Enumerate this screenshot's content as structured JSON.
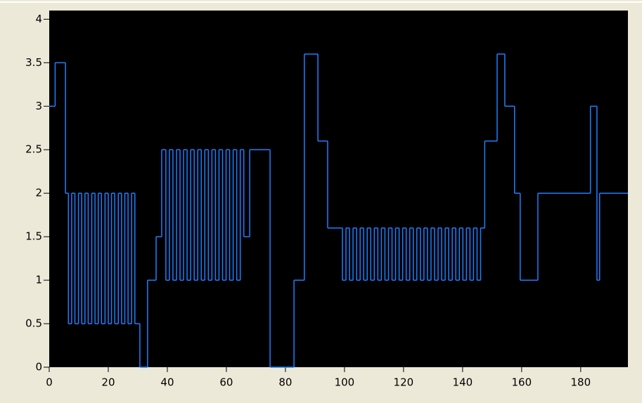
{
  "chart_data": {
    "type": "line",
    "step": "post",
    "background": "#000000",
    "x": [
      0,
      2,
      5.5,
      6.5,
      7.6,
      8.7,
      9.9,
      11,
      12.1,
      13.2,
      14.4,
      15.5,
      16.6,
      17.7,
      18.9,
      20,
      21.1,
      22.2,
      23.4,
      24.5,
      25.6,
      26.7,
      27.9,
      29,
      30.7,
      33.3,
      36.2,
      38.1,
      39.5,
      40.7,
      41.9,
      43.1,
      44.3,
      45.5,
      46.7,
      47.9,
      49.1,
      50.3,
      51.5,
      52.7,
      53.9,
      55.1,
      56.3,
      57.5,
      58.7,
      59.9,
      61.1,
      62.3,
      63.5,
      64.7,
      65.9,
      67.9,
      74.8,
      82.9,
      86.4,
      91,
      94.3,
      99.3,
      100.5,
      101.7,
      102.9,
      104.1,
      105.3,
      106.5,
      107.7,
      108.9,
      110.1,
      111.3,
      112.5,
      113.7,
      114.9,
      116.1,
      117.3,
      118.5,
      119.7,
      120.9,
      122.1,
      123.3,
      124.5,
      125.7,
      126.9,
      128.1,
      129.3,
      130.5,
      131.7,
      132.9,
      134.1,
      135.3,
      136.5,
      137.7,
      138.9,
      140.1,
      141.3,
      142.5,
      143.7,
      144.9,
      146.1,
      147.5,
      151.7,
      154.3,
      157.6,
      159.5,
      165.5,
      183.3,
      185.5,
      186.4,
      196
    ],
    "series": [
      {
        "color": "#1e7fff",
        "values": [
          3,
          3.5,
          2,
          0.5,
          2,
          0.5,
          2,
          0.5,
          2,
          0.5,
          2,
          0.5,
          2,
          0.5,
          2,
          0.5,
          2,
          0.5,
          2,
          0.5,
          2,
          0.5,
          2,
          0.5,
          0,
          1,
          1.5,
          2.5,
          1,
          2.5,
          1,
          2.5,
          1,
          2.5,
          1,
          2.5,
          1,
          2.5,
          1,
          2.5,
          1,
          2.5,
          1,
          2.5,
          1,
          2.5,
          1,
          2.5,
          1,
          2.5,
          1.5,
          2.5,
          0,
          1,
          3.6,
          2.6,
          1.6,
          1,
          1.6,
          1,
          1.6,
          1,
          1.6,
          1,
          1.6,
          1,
          1.6,
          1,
          1.6,
          1,
          1.6,
          1,
          1.6,
          1,
          1.6,
          1,
          1.6,
          1,
          1.6,
          1,
          1.6,
          1,
          1.6,
          1,
          1.6,
          1,
          1.6,
          1,
          1.6,
          1,
          1.6,
          1,
          1.6,
          1,
          1.6,
          1,
          1.6,
          2.6,
          3.6,
          3,
          2,
          1,
          2,
          3,
          1,
          2,
          2
        ]
      }
    ],
    "xlim": [
      0,
      196
    ],
    "xticks": [
      0,
      20,
      40,
      60,
      80,
      100,
      120,
      140,
      160,
      180
    ],
    "ylim": [
      0,
      4.1
    ],
    "yticks": [
      0,
      0.5,
      1,
      1.5,
      2,
      2.5,
      3,
      3.5,
      4
    ]
  }
}
